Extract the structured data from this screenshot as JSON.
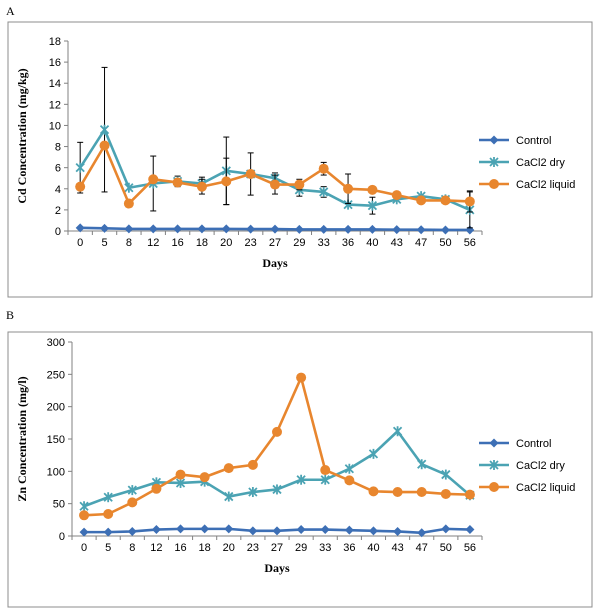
{
  "panels": {
    "a": "A",
    "b": "B"
  },
  "chart_data": [
    {
      "type": "line",
      "x": [
        "0",
        "5",
        "8",
        "12",
        "16",
        "18",
        "20",
        "23",
        "27",
        "29",
        "33",
        "36",
        "40",
        "43",
        "47",
        "50",
        "56"
      ],
      "xlabel": "Days",
      "ylabel": "Cd Concentration (mg/kg)",
      "ylim": [
        0,
        18
      ],
      "yticks": [
        0,
        2,
        4,
        6,
        8,
        10,
        12,
        14,
        16,
        18
      ],
      "legend_position": "right",
      "grid": false,
      "series": [
        {
          "name": "Control",
          "color": "#3D6FB5",
          "marker": "diamond",
          "values": [
            0.3,
            0.25,
            0.2,
            0.2,
            0.2,
            0.2,
            0.2,
            0.18,
            0.18,
            0.15,
            0.15,
            0.15,
            0.15,
            0.13,
            0.12,
            0.1,
            0.1
          ]
        },
        {
          "name": "CaCl2 dry",
          "color": "#4BA3B3",
          "marker": "star",
          "values": [
            6.0,
            9.6,
            4.1,
            4.5,
            4.7,
            4.5,
            5.7,
            5.4,
            5.0,
            3.9,
            3.7,
            2.5,
            2.4,
            3.0,
            3.3,
            3.0,
            2.0
          ],
          "errors": [
            2.4,
            5.9,
            0,
            2.6,
            0.5,
            0.6,
            3.2,
            2.0,
            0.5,
            0.6,
            0.5,
            0,
            0.8,
            0,
            0,
            0,
            1.7
          ]
        },
        {
          "name": "CaCl2 liquid",
          "color": "#E8862E",
          "marker": "circle",
          "values": [
            4.2,
            8.1,
            2.6,
            4.9,
            4.6,
            4.2,
            4.7,
            5.4,
            4.4,
            4.4,
            5.9,
            4.0,
            3.9,
            3.4,
            2.9,
            2.9,
            2.8
          ],
          "errors": [
            0,
            0,
            0,
            0,
            0,
            0.7,
            2.2,
            0,
            0.9,
            0.5,
            0.6,
            1.4,
            0,
            0,
            0,
            0,
            1.0
          ]
        }
      ]
    },
    {
      "type": "line",
      "x": [
        "0",
        "5",
        "8",
        "12",
        "16",
        "18",
        "20",
        "23",
        "27",
        "29",
        "33",
        "36",
        "40",
        "43",
        "47",
        "50",
        "56"
      ],
      "xlabel": "Days",
      "ylabel": "Zn Concentration (mg/l)",
      "ylim": [
        0,
        300
      ],
      "yticks": [
        0,
        50,
        100,
        150,
        200,
        250,
        300
      ],
      "legend_position": "right",
      "grid": false,
      "series": [
        {
          "name": "Control",
          "color": "#3D6FB5",
          "marker": "diamond",
          "values": [
            6,
            6,
            7,
            10,
            11,
            11,
            11,
            8,
            8,
            10,
            10,
            9,
            8,
            7,
            5,
            11,
            10
          ]
        },
        {
          "name": "CaCl2 dry",
          "color": "#4BA3B3",
          "marker": "star",
          "values": [
            46,
            60,
            71,
            83,
            82,
            84,
            61,
            68,
            72,
            87,
            87,
            104,
            127,
            162,
            111,
            95,
            63
          ]
        },
        {
          "name": "CaCl2 liquid",
          "color": "#E8862E",
          "marker": "circle",
          "values": [
            32,
            34,
            52,
            73,
            95,
            91,
            105,
            110,
            161,
            245,
            102,
            86,
            69,
            68,
            68,
            65,
            64
          ]
        }
      ]
    }
  ]
}
